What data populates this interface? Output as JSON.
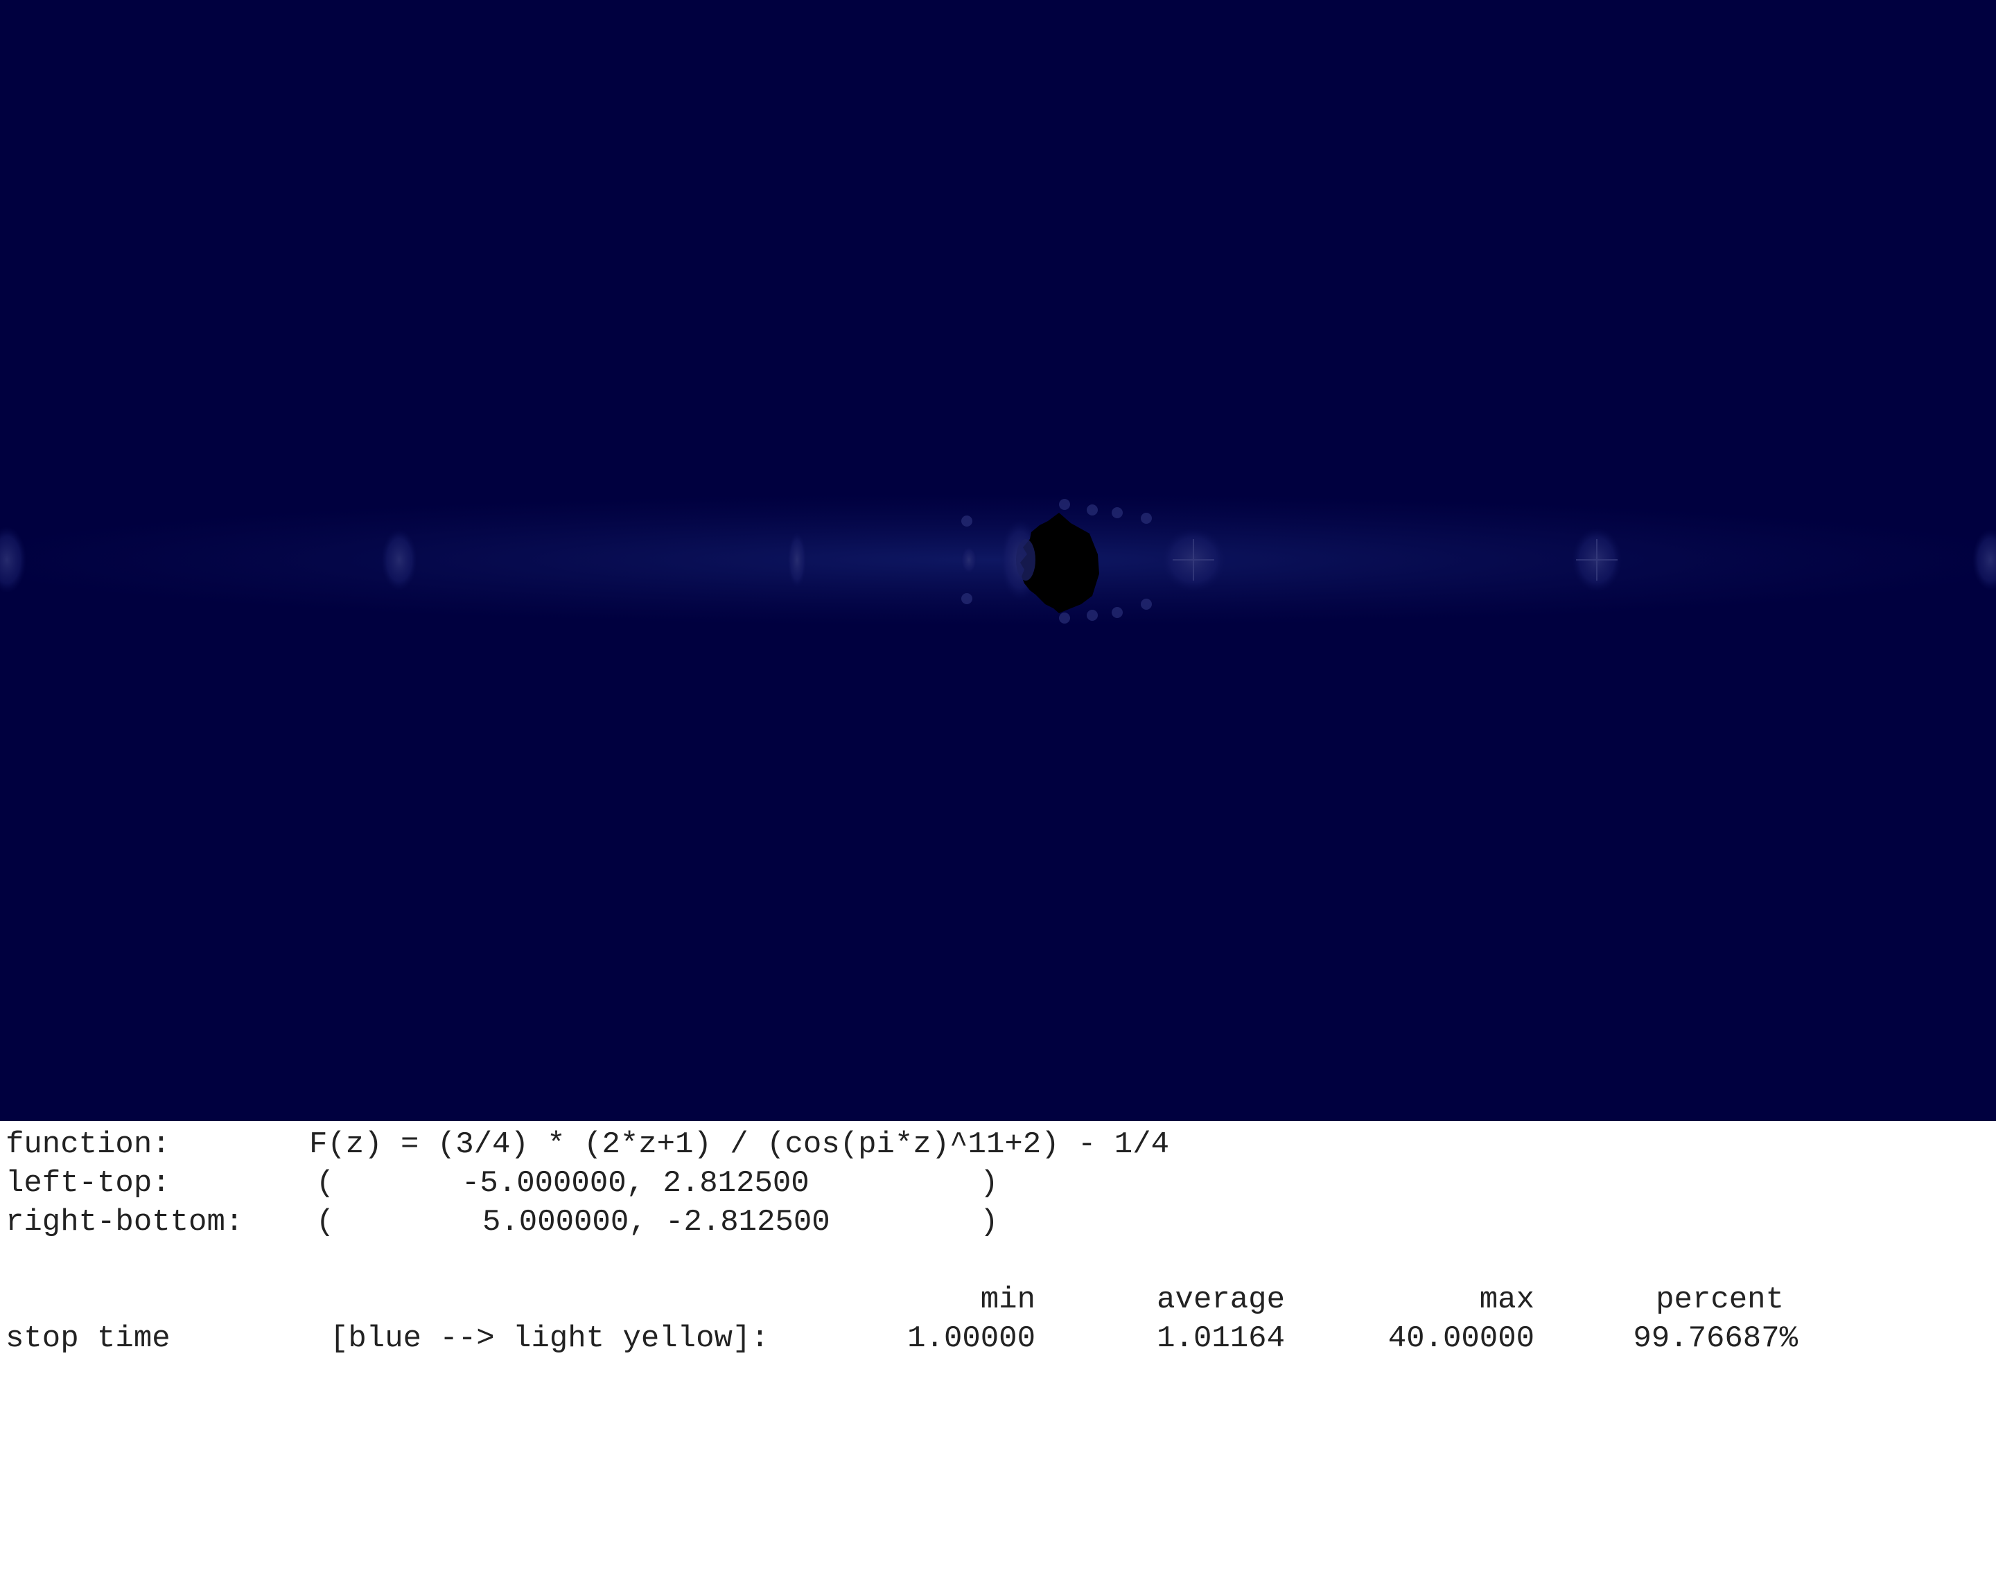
{
  "image": {
    "background_color": "#00003f",
    "band_color": "#0a0f55",
    "set_color": "#000000"
  },
  "info": {
    "function_label": "function:",
    "function_value": "F(z) = (3/4) * (2*z+1) / (cos(pi*z)^11+2) - 1/4",
    "left_top_label": "left-top:",
    "left_top_open": "(",
    "left_top_value": "-5.000000, 2.812500",
    "left_top_close": ")",
    "right_bottom_label": "right-bottom:",
    "right_bottom_open": "(",
    "right_bottom_value": "5.000000, -2.812500",
    "right_bottom_close": ")"
  },
  "stats": {
    "headers": {
      "min": "min",
      "average": "average",
      "max": "max",
      "percent": "percent"
    },
    "row": {
      "label": "stop time",
      "palette": "[blue --> light yellow]:",
      "min": "1.00000",
      "average": "1.01164",
      "max": "40.00000",
      "percent": "99.76687%"
    }
  }
}
